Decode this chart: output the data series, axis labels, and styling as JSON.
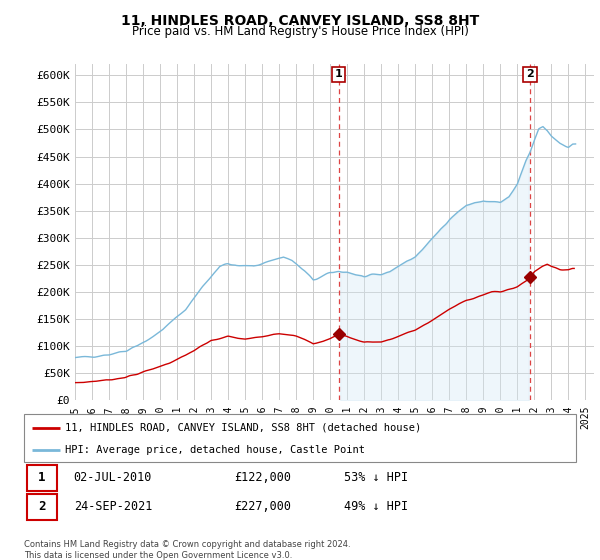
{
  "title": "11, HINDLES ROAD, CANVEY ISLAND, SS8 8HT",
  "subtitle": "Price paid vs. HM Land Registry's House Price Index (HPI)",
  "background_color": "#ffffff",
  "plot_bg_color": "#ffffff",
  "grid_color": "#cccccc",
  "ylim": [
    0,
    620000
  ],
  "yticks": [
    0,
    50000,
    100000,
    150000,
    200000,
    250000,
    300000,
    350000,
    400000,
    450000,
    500000,
    550000,
    600000
  ],
  "ytick_labels": [
    "£0",
    "£50K",
    "£100K",
    "£150K",
    "£200K",
    "£250K",
    "£300K",
    "£350K",
    "£400K",
    "£450K",
    "£500K",
    "£550K",
    "£600K"
  ],
  "xlim_start": 1995.0,
  "xlim_end": 2025.5,
  "xtick_years": [
    1995,
    1996,
    1997,
    1998,
    1999,
    2000,
    2001,
    2002,
    2003,
    2004,
    2005,
    2006,
    2007,
    2008,
    2009,
    2010,
    2011,
    2012,
    2013,
    2014,
    2015,
    2016,
    2017,
    2018,
    2019,
    2020,
    2021,
    2022,
    2023,
    2024,
    2025
  ],
  "hpi_line_color": "#7ab8d9",
  "hpi_fill_color": "#d0e8f5",
  "price_line_color": "#cc0000",
  "dashed_line_color": "#dd4444",
  "sale1_x": 2010.5,
  "sale1_y": 122000,
  "sale2_x": 2021.73,
  "sale2_y": 227000,
  "marker_color": "#990000",
  "legend_line1": "11, HINDLES ROAD, CANVEY ISLAND, SS8 8HT (detached house)",
  "legend_line2": "HPI: Average price, detached house, Castle Point",
  "sale_info": [
    {
      "label": "1",
      "date": "02-JUL-2010",
      "price": "£122,000",
      "hpi_note": "53% ↓ HPI"
    },
    {
      "label": "2",
      "date": "24-SEP-2021",
      "price": "£227,000",
      "hpi_note": "49% ↓ HPI"
    }
  ],
  "footer": "Contains HM Land Registry data © Crown copyright and database right 2024.\nThis data is licensed under the Open Government Licence v3.0."
}
